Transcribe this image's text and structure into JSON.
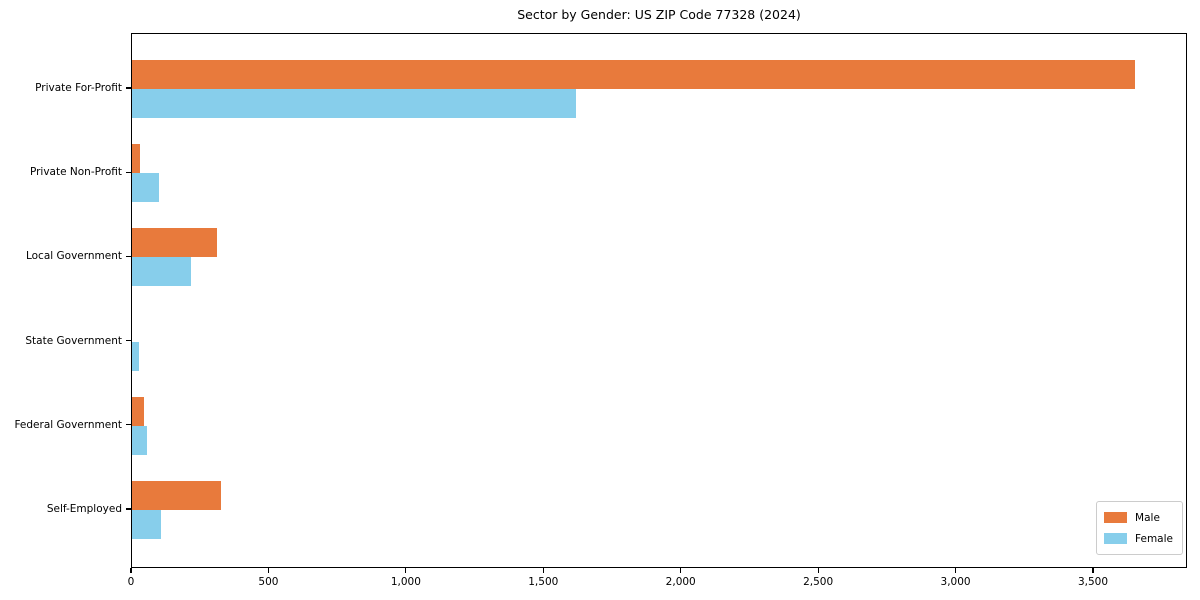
{
  "chart_data": {
    "type": "bar",
    "orientation": "horizontal",
    "title": "Sector by Gender: US ZIP Code 77328 (2024)",
    "categories": [
      "Private For-Profit",
      "Private Non-Profit",
      "Local Government",
      "State Government",
      "Federal Government",
      "Self-Employed"
    ],
    "series": [
      {
        "name": "Male",
        "color": "#e87a3c",
        "values": [
          3650,
          30,
          310,
          0,
          42,
          325
        ]
      },
      {
        "name": "Female",
        "color": "#87ceeb",
        "values": [
          1615,
          100,
          215,
          25,
          55,
          105
        ]
      }
    ],
    "xlabel": "",
    "ylabel": "",
    "xlim": [
      0,
      3842
    ],
    "xticks": [
      0,
      500,
      1000,
      1500,
      2000,
      2500,
      3000,
      3500
    ],
    "xtick_labels": [
      "0",
      "500",
      "1,000",
      "1,500",
      "2,000",
      "2,500",
      "3,000",
      "3,500"
    ],
    "grid": false,
    "legend": {
      "position": "lower right",
      "entries": [
        "Male",
        "Female"
      ]
    }
  }
}
